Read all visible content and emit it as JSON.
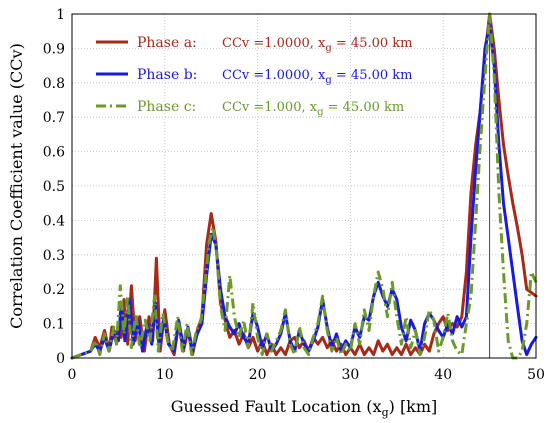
{
  "chart_data": {
    "type": "line",
    "xlabel": "Guessed Fault Location (x",
    "xlabel_sub": "g",
    "xlabel_suffix": ") [km]",
    "ylabel": "Correlation Coefficient value (CCv)",
    "xlim": [
      0,
      50
    ],
    "ylim": [
      0,
      1
    ],
    "xticks": [
      "0",
      "10",
      "20",
      "30",
      "40",
      "50"
    ],
    "yticks": [
      "0",
      "0.1",
      "0.2",
      "0.3",
      "0.4",
      "0.5",
      "0.6",
      "0.7",
      "0.8",
      "0.9",
      "1"
    ],
    "grid": "dotted",
    "legend_position": "top-left",
    "marker_line_x": 45,
    "series": [
      {
        "name": "Phase a:",
        "info": "CCv =1.0000, x",
        "info_sub": "g",
        "info_suffix": " = 45.00 km",
        "color": "#a52a1a",
        "dash": "solid",
        "points": [
          [
            0,
            0
          ],
          [
            1,
            0.01
          ],
          [
            2,
            0.02
          ],
          [
            2.5,
            0.06
          ],
          [
            3,
            0.03
          ],
          [
            3.5,
            0.08
          ],
          [
            4,
            0.02
          ],
          [
            4.3,
            0.09
          ],
          [
            4.7,
            0.05
          ],
          [
            5,
            0.1
          ],
          [
            5.3,
            0.06
          ],
          [
            5.6,
            0.17
          ],
          [
            6,
            0.04
          ],
          [
            6.4,
            0.21
          ],
          [
            6.8,
            0.05
          ],
          [
            7.3,
            0.12
          ],
          [
            7.8,
            0.02
          ],
          [
            8.3,
            0.12
          ],
          [
            8.7,
            0.05
          ],
          [
            9.1,
            0.29
          ],
          [
            9.5,
            0.02
          ],
          [
            10,
            0.14
          ],
          [
            10.5,
            0.04
          ],
          [
            11,
            0.01
          ],
          [
            11.5,
            0.1
          ],
          [
            12,
            0.02
          ],
          [
            12.5,
            0.08
          ],
          [
            13,
            0.01
          ],
          [
            13.5,
            0.08
          ],
          [
            14,
            0.12
          ],
          [
            14.5,
            0.33
          ],
          [
            15,
            0.42
          ],
          [
            15.5,
            0.34
          ],
          [
            16,
            0.16
          ],
          [
            16.5,
            0.11
          ],
          [
            17,
            0.06
          ],
          [
            17.5,
            0.08
          ],
          [
            18,
            0.04
          ],
          [
            18.5,
            0.07
          ],
          [
            19,
            0.03
          ],
          [
            19.5,
            0.06
          ],
          [
            20,
            0.02
          ],
          [
            20.5,
            0.05
          ],
          [
            21,
            0.01
          ],
          [
            21.5,
            0.04
          ],
          [
            22,
            0.01
          ],
          [
            22.5,
            0.03
          ],
          [
            23,
            0.01
          ],
          [
            23.5,
            0.05
          ],
          [
            24,
            0.06
          ],
          [
            24.5,
            0.03
          ],
          [
            25,
            0.05
          ],
          [
            25.5,
            0.02
          ],
          [
            26,
            0.06
          ],
          [
            26.5,
            0.04
          ],
          [
            27,
            0.06
          ],
          [
            27.5,
            0.03
          ],
          [
            28,
            0.05
          ],
          [
            28.5,
            0.02
          ],
          [
            29,
            0.04
          ],
          [
            29.5,
            0.01
          ],
          [
            30,
            0.03
          ],
          [
            30.5,
            0.01
          ],
          [
            31,
            0.04
          ],
          [
            31.5,
            0.01
          ],
          [
            32,
            0.03
          ],
          [
            32.5,
            0.01
          ],
          [
            33,
            0.05
          ],
          [
            33.5,
            0.02
          ],
          [
            34,
            0.04
          ],
          [
            34.5,
            0.01
          ],
          [
            35,
            0.03
          ],
          [
            35.5,
            0.01
          ],
          [
            36,
            0.04
          ],
          [
            36.5,
            0.01
          ],
          [
            37,
            0.03
          ],
          [
            37.5,
            0.01
          ],
          [
            38,
            0.04
          ],
          [
            38.5,
            0.02
          ],
          [
            39,
            0.07
          ],
          [
            39.5,
            0.1
          ],
          [
            40,
            0.12
          ],
          [
            40.5,
            0.08
          ],
          [
            41,
            0.1
          ],
          [
            41.5,
            0.09
          ],
          [
            42,
            0.12
          ],
          [
            42.5,
            0.25
          ],
          [
            43,
            0.48
          ],
          [
            43.5,
            0.62
          ],
          [
            44,
            0.72
          ],
          [
            44.5,
            0.88
          ],
          [
            45,
            1.0
          ],
          [
            45.5,
            0.9
          ],
          [
            46,
            0.75
          ],
          [
            46.5,
            0.62
          ],
          [
            47,
            0.53
          ],
          [
            47.5,
            0.45
          ],
          [
            48,
            0.38
          ],
          [
            48.5,
            0.3
          ],
          [
            49,
            0.2
          ],
          [
            49.5,
            0.19
          ],
          [
            50,
            0.18
          ]
        ]
      },
      {
        "name": "Phase b:",
        "info": "CCv =1.0000, x",
        "info_sub": "g",
        "info_suffix": " = 45.00 km",
        "color": "#1a1adc",
        "dash": "solid",
        "points": [
          [
            0,
            0
          ],
          [
            1,
            0.01
          ],
          [
            2,
            0.02
          ],
          [
            2.5,
            0.04
          ],
          [
            3,
            0.02
          ],
          [
            3.5,
            0.06
          ],
          [
            4,
            0.02
          ],
          [
            4.5,
            0.08
          ],
          [
            5,
            0.05
          ],
          [
            5.3,
            0.16
          ],
          [
            5.7,
            0.05
          ],
          [
            6.2,
            0.17
          ],
          [
            6.6,
            0.04
          ],
          [
            7.1,
            0.11
          ],
          [
            7.6,
            0.02
          ],
          [
            8.1,
            0.1
          ],
          [
            8.6,
            0.04
          ],
          [
            9,
            0.16
          ],
          [
            9.4,
            0.03
          ],
          [
            9.9,
            0.12
          ],
          [
            10.4,
            0.04
          ],
          [
            11,
            0.02
          ],
          [
            11.5,
            0.11
          ],
          [
            12,
            0.03
          ],
          [
            12.5,
            0.09
          ],
          [
            13,
            0.02
          ],
          [
            13.5,
            0.07
          ],
          [
            14,
            0.1
          ],
          [
            14.5,
            0.24
          ],
          [
            15,
            0.36
          ],
          [
            15.5,
            0.33
          ],
          [
            16,
            0.2
          ],
          [
            16.5,
            0.12
          ],
          [
            17,
            0.09
          ],
          [
            17.5,
            0.07
          ],
          [
            18,
            0.1
          ],
          [
            18.5,
            0.06
          ],
          [
            19,
            0.04
          ],
          [
            19.5,
            0.13
          ],
          [
            20,
            0.09
          ],
          [
            20.5,
            0.03
          ],
          [
            21,
            0.07
          ],
          [
            21.5,
            0.02
          ],
          [
            22,
            0.04
          ],
          [
            22.5,
            0.07
          ],
          [
            23,
            0.13
          ],
          [
            23.5,
            0.05
          ],
          [
            24,
            0.02
          ],
          [
            24.5,
            0.08
          ],
          [
            25,
            0.04
          ],
          [
            25.5,
            0.02
          ],
          [
            26,
            0.05
          ],
          [
            26.5,
            0.09
          ],
          [
            27,
            0.17
          ],
          [
            27.5,
            0.09
          ],
          [
            28,
            0.03
          ],
          [
            28.5,
            0.07
          ],
          [
            29,
            0.02
          ],
          [
            29.5,
            0.05
          ],
          [
            30,
            0.03
          ],
          [
            30.5,
            0.09
          ],
          [
            31,
            0.06
          ],
          [
            31.5,
            0.12
          ],
          [
            32,
            0.11
          ],
          [
            32.5,
            0.18
          ],
          [
            33,
            0.22
          ],
          [
            33.5,
            0.18
          ],
          [
            34,
            0.15
          ],
          [
            34.5,
            0.2
          ],
          [
            35,
            0.17
          ],
          [
            35.5,
            0.09
          ],
          [
            36,
            0.05
          ],
          [
            36.5,
            0.11
          ],
          [
            37,
            0.08
          ],
          [
            37.5,
            0.02
          ],
          [
            38,
            0.1
          ],
          [
            38.5,
            0.13
          ],
          [
            39,
            0.11
          ],
          [
            39.5,
            0.08
          ],
          [
            40,
            0.06
          ],
          [
            40.5,
            0.1
          ],
          [
            41,
            0.07
          ],
          [
            41.5,
            0.12
          ],
          [
            42,
            0.09
          ],
          [
            42.5,
            0.12
          ],
          [
            43,
            0.35
          ],
          [
            43.5,
            0.55
          ],
          [
            44,
            0.72
          ],
          [
            44.5,
            0.9
          ],
          [
            45,
            0.97
          ],
          [
            45.5,
            0.85
          ],
          [
            46,
            0.62
          ],
          [
            46.5,
            0.45
          ],
          [
            47,
            0.35
          ],
          [
            47.5,
            0.25
          ],
          [
            48,
            0.15
          ],
          [
            48.5,
            0.05
          ],
          [
            49,
            0.01
          ],
          [
            49.5,
            0.04
          ],
          [
            50,
            0.06
          ]
        ]
      },
      {
        "name": "Phase c:",
        "info": "CCv =1.000, x",
        "info_sub": "g",
        "info_suffix": " = 45.00 km",
        "color": "#6b9a2a",
        "dash": "dashdot",
        "points": [
          [
            0,
            0
          ],
          [
            1,
            0.01
          ],
          [
            2,
            0.02
          ],
          [
            2.5,
            0.05
          ],
          [
            3,
            0.01
          ],
          [
            3.5,
            0.07
          ],
          [
            4,
            0.02
          ],
          [
            4.5,
            0.09
          ],
          [
            4.8,
            0.04
          ],
          [
            5.2,
            0.21
          ],
          [
            5.6,
            0.07
          ],
          [
            6,
            0.18
          ],
          [
            6.4,
            0.03
          ],
          [
            6.9,
            0.13
          ],
          [
            7.3,
            0.03
          ],
          [
            7.9,
            0.11
          ],
          [
            8.4,
            0.05
          ],
          [
            8.9,
            0.18
          ],
          [
            9.3,
            0.02
          ],
          [
            9.8,
            0.13
          ],
          [
            10.3,
            0.05
          ],
          [
            10.8,
            0.02
          ],
          [
            11.4,
            0.12
          ],
          [
            11.9,
            0.02
          ],
          [
            12.4,
            0.1
          ],
          [
            12.9,
            0.01
          ],
          [
            13.4,
            0.08
          ],
          [
            13.9,
            0.11
          ],
          [
            14.4,
            0.23
          ],
          [
            14.8,
            0.34
          ],
          [
            15.2,
            0.38
          ],
          [
            15.6,
            0.3
          ],
          [
            16,
            0.15
          ],
          [
            16.5,
            0.08
          ],
          [
            17,
            0.24
          ],
          [
            17.5,
            0.12
          ],
          [
            18,
            0.06
          ],
          [
            18.5,
            0.11
          ],
          [
            19,
            0.03
          ],
          [
            19.5,
            0.16
          ],
          [
            20,
            0.06
          ],
          [
            20.5,
            0.01
          ],
          [
            21,
            0.07
          ],
          [
            21.5,
            0.02
          ],
          [
            22,
            0.05
          ],
          [
            22.5,
            0.08
          ],
          [
            23,
            0.14
          ],
          [
            23.5,
            0.04
          ],
          [
            24,
            0.01
          ],
          [
            24.5,
            0.09
          ],
          [
            25,
            0.03
          ],
          [
            25.5,
            0.01
          ],
          [
            26,
            0.06
          ],
          [
            26.5,
            0.1
          ],
          [
            27,
            0.18
          ],
          [
            27.5,
            0.08
          ],
          [
            28,
            0.02
          ],
          [
            28.5,
            0.06
          ],
          [
            29,
            0.01
          ],
          [
            29.5,
            0.04
          ],
          [
            30,
            0.02
          ],
          [
            30.5,
            0.1
          ],
          [
            31,
            0.04
          ],
          [
            31.5,
            0.14
          ],
          [
            32,
            0.08
          ],
          [
            32.5,
            0.18
          ],
          [
            33,
            0.25
          ],
          [
            33.5,
            0.2
          ],
          [
            34,
            0.12
          ],
          [
            34.5,
            0.22
          ],
          [
            35,
            0.12
          ],
          [
            35.5,
            0.04
          ],
          [
            36,
            0.12
          ],
          [
            36.5,
            0.03
          ],
          [
            37,
            0.08
          ],
          [
            37.5,
            0.01
          ],
          [
            38,
            0.06
          ],
          [
            38.5,
            0.14
          ],
          [
            39,
            0.11
          ],
          [
            39.5,
            0.02
          ],
          [
            40,
            0.06
          ],
          [
            40.5,
            0.13
          ],
          [
            41,
            0.05
          ],
          [
            41.5,
            0.02
          ],
          [
            42,
            0.01
          ],
          [
            42.5,
            0.1
          ],
          [
            43,
            0.18
          ],
          [
            43.5,
            0.4
          ],
          [
            44,
            0.62
          ],
          [
            44.5,
            0.82
          ],
          [
            45,
            1.0
          ],
          [
            45.5,
            0.82
          ],
          [
            46,
            0.48
          ],
          [
            46.5,
            0.25
          ],
          [
            47,
            0.05
          ],
          [
            47.5,
            0.0
          ],
          [
            48,
            0.0
          ],
          [
            48.5,
            0.02
          ],
          [
            49,
            0.1
          ],
          [
            49.5,
            0.25
          ],
          [
            50,
            0.22
          ]
        ]
      }
    ]
  }
}
